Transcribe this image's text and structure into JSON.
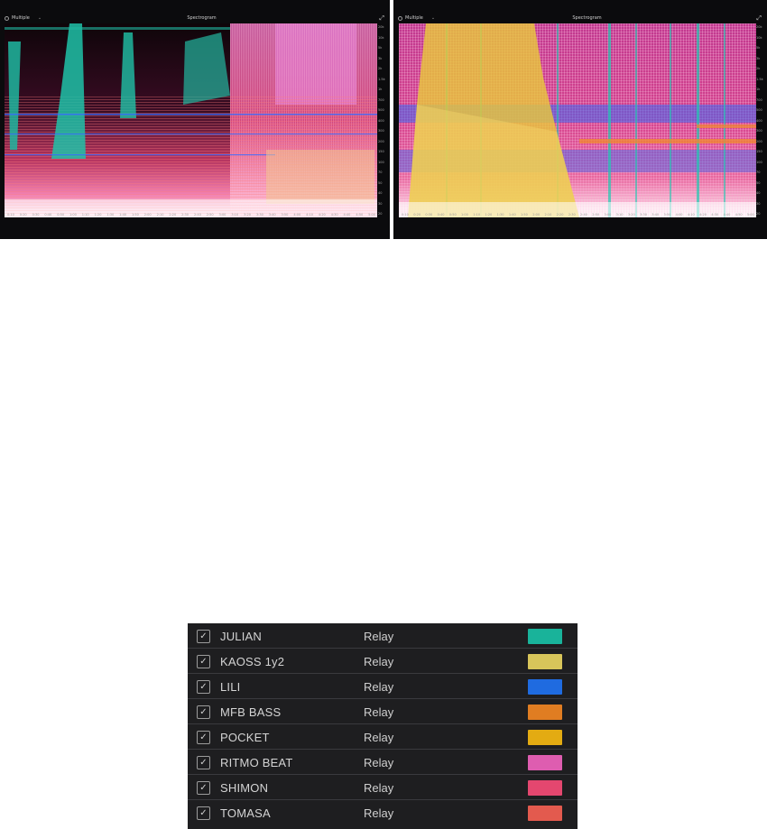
{
  "spectrograms": [
    {
      "id": "left",
      "source_label": "Multiple",
      "title": "Spectrogram",
      "freq_ticks": [
        "20k",
        "10k",
        "5k",
        "3k",
        "2k",
        "1.5k",
        "1k",
        "700",
        "500",
        "400",
        "300",
        "200",
        "150",
        "100",
        "70",
        "50",
        "40",
        "30",
        "20"
      ],
      "time_ticks": [
        "0:10",
        "0:20",
        "0:30",
        "0:40",
        "0:50",
        "1:00",
        "1:10",
        "1:20",
        "1:30",
        "1:40",
        "1:50",
        "2:00",
        "2:10",
        "2:20",
        "2:30",
        "2:40",
        "2:50",
        "3:00",
        "3:10",
        "3:20",
        "3:30",
        "3:40",
        "3:50",
        "4:00",
        "4:10",
        "4:20",
        "4:30",
        "4:40",
        "4:50",
        "5:00"
      ]
    },
    {
      "id": "right",
      "source_label": "Multiple",
      "title": "Spectrogram",
      "freq_ticks": [
        "20k",
        "10k",
        "5k",
        "3k",
        "2k",
        "1.5k",
        "1k",
        "700",
        "500",
        "400",
        "300",
        "200",
        "150",
        "100",
        "70",
        "50",
        "40",
        "30",
        "20"
      ],
      "time_ticks": [
        "0:10",
        "0:20",
        "0:30",
        "0:40",
        "0:50",
        "1:00",
        "1:10",
        "1:20",
        "1:30",
        "1:40",
        "1:50",
        "2:00",
        "2:10",
        "2:20",
        "2:30",
        "2:40",
        "2:50",
        "3:00",
        "3:10",
        "3:20",
        "3:30",
        "3:40",
        "3:50",
        "4:00",
        "4:10",
        "4:20",
        "4:30",
        "4:40",
        "4:50",
        "5:00"
      ]
    }
  ],
  "legend": {
    "rows": [
      {
        "checked": true,
        "name": "JULIAN",
        "mode": "Relay",
        "color": "#19b39a"
      },
      {
        "checked": true,
        "name": "KAOSS 1y2",
        "mode": "Relay",
        "color": "#d8c55a"
      },
      {
        "checked": true,
        "name": "LILI",
        "mode": "Relay",
        "color": "#1f6be0"
      },
      {
        "checked": true,
        "name": "MFB BASS",
        "mode": "Relay",
        "color": "#e07d22"
      },
      {
        "checked": true,
        "name": "POCKET",
        "mode": "Relay",
        "color": "#e3ab12"
      },
      {
        "checked": true,
        "name": "RITMO BEAT",
        "mode": "Relay",
        "color": "#de5db0"
      },
      {
        "checked": true,
        "name": "SHIMON",
        "mode": "Relay",
        "color": "#e4476f"
      },
      {
        "checked": true,
        "name": "TOMASA",
        "mode": "Relay",
        "color": "#e35a4e"
      }
    ]
  }
}
